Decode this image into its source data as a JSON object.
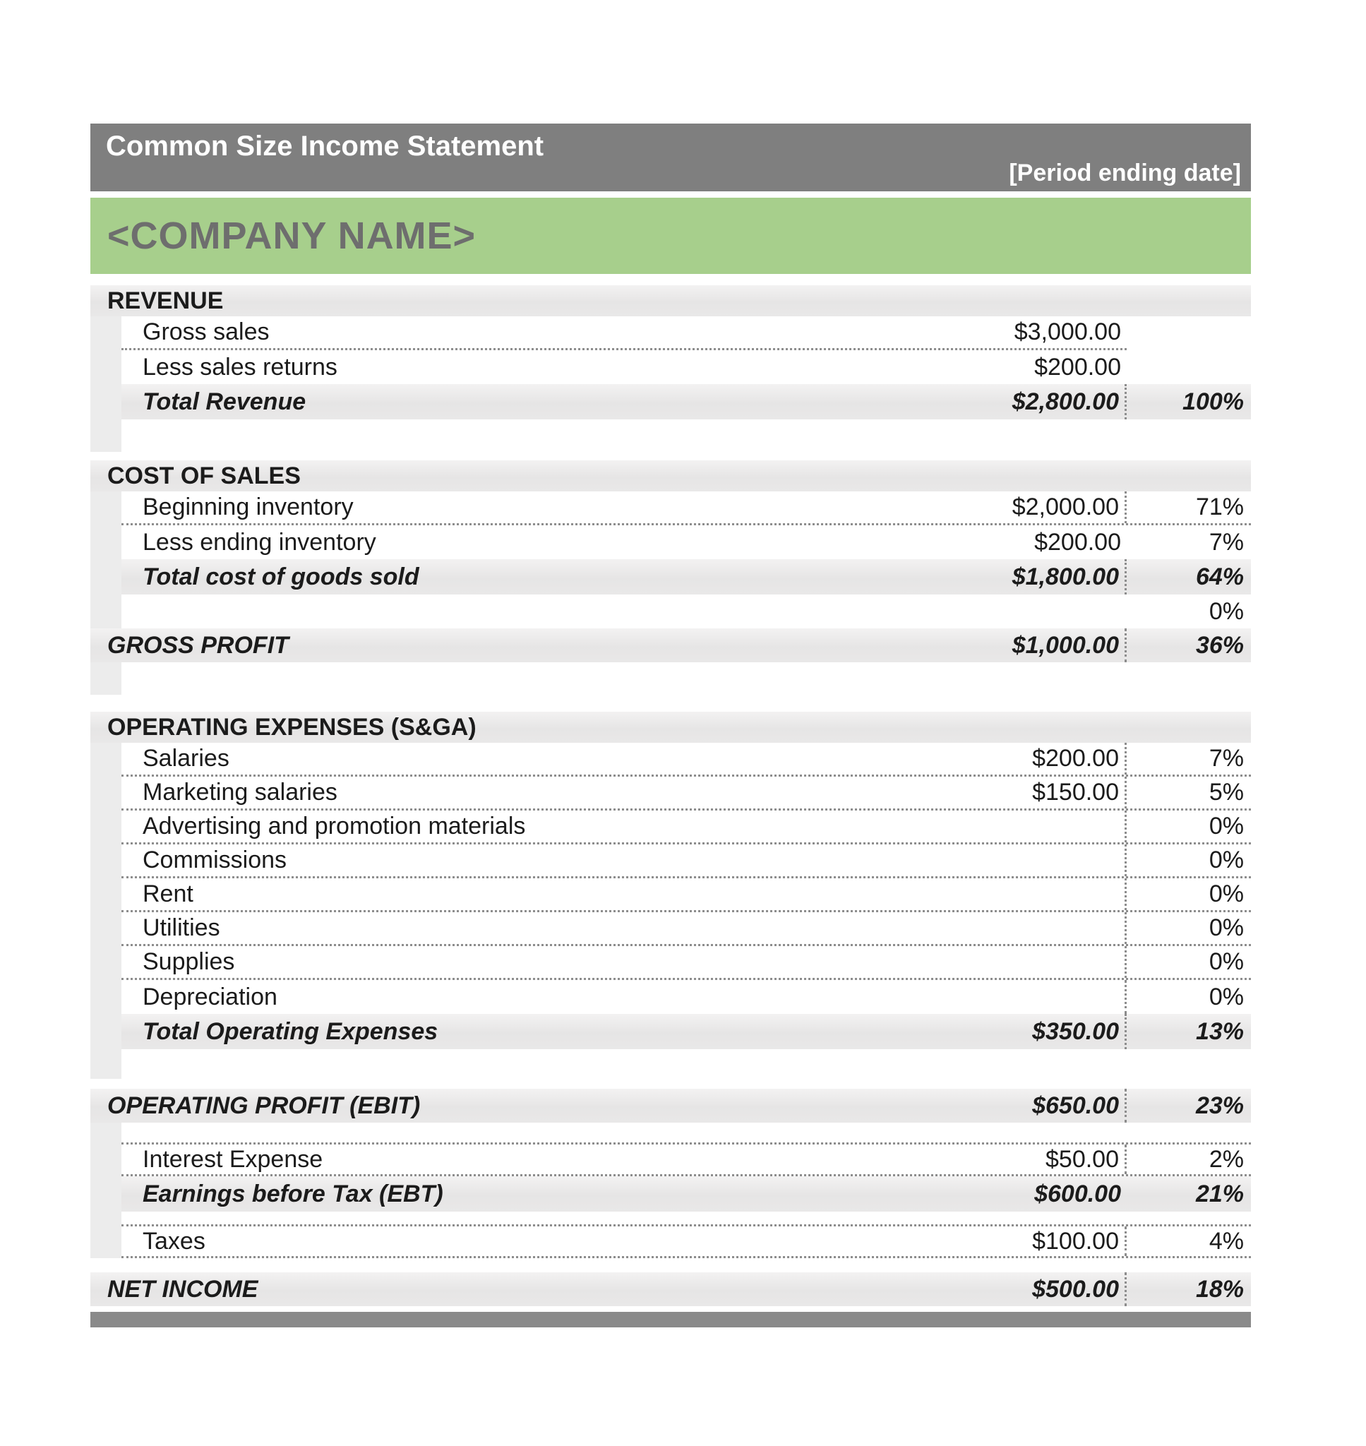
{
  "title_bar": {
    "title": "Common Size Income Statement",
    "period_ending": "[Period ending date]"
  },
  "company_banner": {
    "name": "<COMPANY NAME>"
  },
  "colors": {
    "title_bar_gray": "#7f7f7f",
    "banner_green": "#a7cf8c",
    "section_band_gray": "#e7e6e6",
    "indent_strip_gray": "#ececec",
    "footer_bar_gray": "#8a8a8a",
    "text_dark": "#1b1b1b",
    "dotted_border_gray": "#8d8d8d"
  },
  "statement": {
    "rows": [
      {
        "kind": "section",
        "label": "REVENUE",
        "amount": "",
        "pct": ""
      },
      {
        "kind": "item",
        "label": "Gross sales",
        "amount": "$3,000.00",
        "pct": "",
        "bb": "short"
      },
      {
        "kind": "item",
        "label": "Less sales returns",
        "amount": "$200.00",
        "pct": ""
      },
      {
        "kind": "subtotal",
        "label": "Total Revenue",
        "amount": "$2,800.00",
        "pct": "100%",
        "vsep": true
      },
      {
        "kind": "spacer",
        "variant": "a"
      },
      {
        "kind": "gap",
        "variant": "a"
      },
      {
        "kind": "section",
        "label": "COST OF SALES",
        "amount": "",
        "pct": ""
      },
      {
        "kind": "item",
        "label": "Beginning inventory",
        "amount": "$2,000.00",
        "pct": "71%",
        "bb": "full",
        "vsep": true
      },
      {
        "kind": "item",
        "label": "Less ending inventory",
        "amount": "$200.00",
        "pct": "7%"
      },
      {
        "kind": "subtotal",
        "label": "Total cost of goods sold",
        "amount": "$1,800.00",
        "pct": "64%",
        "vsep": true
      },
      {
        "kind": "item",
        "label": "",
        "amount": "",
        "pct": "0%"
      },
      {
        "kind": "major",
        "label": "GROSS PROFIT",
        "amount": "$1,000.00",
        "pct": "36%",
        "vsep": true
      },
      {
        "kind": "spacer",
        "variant": "a"
      },
      {
        "kind": "gap",
        "variant": "b"
      },
      {
        "kind": "section",
        "label": "OPERATING EXPENSES (S&GA)",
        "amount": "",
        "pct": ""
      },
      {
        "kind": "item",
        "label": "Salaries",
        "amount": "$200.00",
        "pct": "7%",
        "bb": "full",
        "vsep": true
      },
      {
        "kind": "item",
        "label": "Marketing salaries",
        "amount": "$150.00",
        "pct": "5%",
        "bb": "full",
        "vsep": true
      },
      {
        "kind": "item",
        "label": "Advertising and promotion materials",
        "amount": "",
        "pct": "0%",
        "bb": "full",
        "vsep": true
      },
      {
        "kind": "item",
        "label": "Commissions",
        "amount": "",
        "pct": "0%",
        "bb": "full",
        "vsep": true
      },
      {
        "kind": "item",
        "label": "Rent",
        "amount": "",
        "pct": "0%",
        "bb": "full",
        "vsep": true
      },
      {
        "kind": "item",
        "label": "Utilities",
        "amount": "",
        "pct": "0%",
        "bb": "full",
        "vsep": true
      },
      {
        "kind": "item",
        "label": "Supplies",
        "amount": "",
        "pct": "0%",
        "bb": "full",
        "vsep": true
      },
      {
        "kind": "item",
        "label": "Depreciation",
        "amount": "",
        "pct": "0%",
        "vsep": true
      },
      {
        "kind": "subtotal",
        "label": "Total Operating Expenses",
        "amount": "$350.00",
        "pct": "13%",
        "vsep": true
      },
      {
        "kind": "spacer",
        "variant": "b"
      },
      {
        "kind": "gap",
        "variant": "c"
      },
      {
        "kind": "major",
        "label": "OPERATING PROFIT (EBIT)",
        "amount": "$650.00",
        "pct": "23%",
        "vsep": true
      },
      {
        "kind": "spacer",
        "variant": "c"
      },
      {
        "kind": "item",
        "label": "Interest Expense",
        "amount": "$50.00",
        "pct": "2%",
        "bt": true,
        "bb": "full",
        "vsep": true
      },
      {
        "kind": "subtotal",
        "label": "Earnings before Tax (EBT)",
        "amount": "$600.00",
        "pct": "21%"
      },
      {
        "kind": "spacer",
        "variant": "d"
      },
      {
        "kind": "item",
        "label": "Taxes",
        "amount": "$100.00",
        "pct": "4%",
        "bt": true,
        "bb": "full",
        "vsep": true
      },
      {
        "kind": "gap",
        "variant": "e"
      },
      {
        "kind": "major",
        "label": "NET INCOME",
        "amount": "$500.00",
        "pct": "18%",
        "vsep": true
      },
      {
        "kind": "gap",
        "variant": "f"
      },
      {
        "kind": "footer"
      }
    ]
  }
}
